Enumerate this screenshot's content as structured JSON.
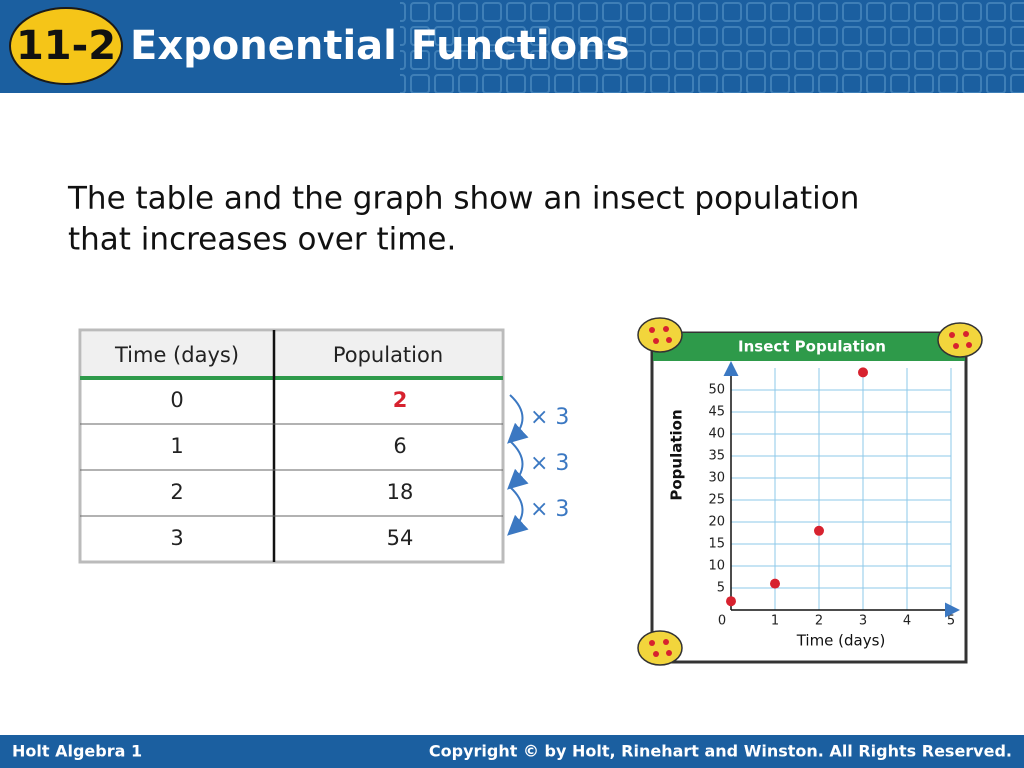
{
  "header": {
    "badge": "11-2",
    "title": "Exponential Functions"
  },
  "intro": [
    "The table and the graph show an insect population",
    "that increases over time."
  ],
  "table": {
    "columns": [
      "Time (days)",
      "Population"
    ],
    "rows": [
      [
        0,
        2
      ],
      [
        1,
        6
      ],
      [
        2,
        18
      ],
      [
        3,
        54
      ]
    ]
  },
  "multipliers": [
    "× 3",
    "× 3",
    "× 3"
  ],
  "chart_data": {
    "type": "scatter",
    "title": "Insect Population",
    "x_label": "Time (days)",
    "y_label": "Population",
    "x": [
      0,
      1,
      2,
      3
    ],
    "values": [
      2,
      6,
      18,
      54
    ],
    "color": "#d7222f",
    "xlim": [
      0,
      5
    ],
    "ylim": [
      0,
      55
    ],
    "xticks": [
      0,
      1,
      2,
      3,
      4,
      5
    ],
    "yticks": [
      5,
      10,
      15,
      20,
      25,
      30,
      35,
      40,
      45,
      50
    ],
    "grid": true
  },
  "footer": {
    "left": "Holt Algebra 1",
    "right": "Copyright © by Holt, Rinehart and Winston. All Rights Reserved."
  }
}
